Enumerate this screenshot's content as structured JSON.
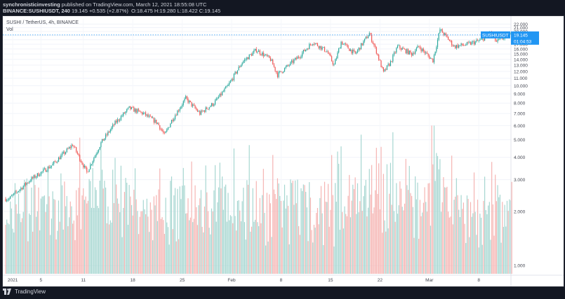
{
  "header": {
    "author": "synchronisticinvesting",
    "published": "published on TradingView.com, March 12, 2021 18:55:08 UTC",
    "symbol_line": {
      "symbol": "BINANCE:SUSHIUSDT, 240",
      "close": "19.145",
      "change": "+0.535 (+2.87%)",
      "o": "O:18.475",
      "h": "H:19.280",
      "l": "L:18.422",
      "c": "C:19.145"
    }
  },
  "legend": {
    "title": "SUSHI / TetherUS, 4h, BINANCE",
    "vol_label": "Vol"
  },
  "price_label": {
    "symbol": "SUSHIUSDT",
    "price": "19.145",
    "countdown": "01:04:53"
  },
  "footer": {
    "brand": "TradingView"
  },
  "colors": {
    "up": "#26a69a",
    "down": "#ef5350",
    "vol_up": "#a5d6d0",
    "vol_down": "#f5b3b1",
    "price_line": "#2196f3"
  },
  "chart_data": {
    "type": "candlestick",
    "series_name": "SUSHIUSDT",
    "interval": "4h",
    "x_tick_labels": [
      "2021",
      "5",
      "11",
      "18",
      "25",
      "Feb",
      "8",
      "15",
      "22",
      "Mar",
      "8"
    ],
    "y_tick_labels": [
      "1.000",
      "2.000",
      "3.000",
      "4.000",
      "5.000",
      "6.000",
      "7.000",
      "8.000",
      "9.000",
      "10.000",
      "11.000",
      "12.000",
      "13.000",
      "14.000",
      "15.000",
      "16.000",
      "17.000",
      "18.000",
      "19.000",
      "20.000",
      "21.000",
      "22.000"
    ],
    "y_scale": "log",
    "ylim": [
      0.9,
      23.5
    ],
    "last_price": 19.145,
    "trend_keypoints": [
      {
        "date": "2020-12-31",
        "close": 2.35
      },
      {
        "date": "2021-01-03",
        "close": 3.0
      },
      {
        "date": "2021-01-06",
        "close": 3.6
      },
      {
        "date": "2021-01-09",
        "close": 4.7
      },
      {
        "date": "2021-01-11",
        "close": 3.3
      },
      {
        "date": "2021-01-13",
        "close": 4.8
      },
      {
        "date": "2021-01-15",
        "close": 6.2
      },
      {
        "date": "2021-01-17",
        "close": 7.5
      },
      {
        "date": "2021-01-19",
        "close": 7.0
      },
      {
        "date": "2021-01-21",
        "close": 6.2
      },
      {
        "date": "2021-01-22",
        "close": 5.3
      },
      {
        "date": "2021-01-23",
        "close": 6.4
      },
      {
        "date": "2021-01-25",
        "close": 8.5
      },
      {
        "date": "2021-01-27",
        "close": 7.0
      },
      {
        "date": "2021-01-29",
        "close": 8.0
      },
      {
        "date": "2021-01-31",
        "close": 10.0
      },
      {
        "date": "2021-02-02",
        "close": 13.5
      },
      {
        "date": "2021-02-04",
        "close": 15.8
      },
      {
        "date": "2021-02-06",
        "close": 14.0
      },
      {
        "date": "2021-02-07",
        "close": 11.5
      },
      {
        "date": "2021-02-10",
        "close": 14.5
      },
      {
        "date": "2021-02-12",
        "close": 17.5
      },
      {
        "date": "2021-02-14",
        "close": 15.5
      },
      {
        "date": "2021-02-15",
        "close": 13.0
      },
      {
        "date": "2021-02-16",
        "close": 17.5
      },
      {
        "date": "2021-02-18",
        "close": 15.0
      },
      {
        "date": "2021-02-20",
        "close": 19.5
      },
      {
        "date": "2021-02-21",
        "close": 15.5
      },
      {
        "date": "2021-02-22",
        "close": 11.8
      },
      {
        "date": "2021-02-23",
        "close": 13.5
      },
      {
        "date": "2021-02-24",
        "close": 16.5
      },
      {
        "date": "2021-02-26",
        "close": 15.0
      },
      {
        "date": "2021-02-27",
        "close": 16.5
      },
      {
        "date": "2021-03-01",
        "close": 13.8
      },
      {
        "date": "2021-03-02",
        "close": 20.5
      },
      {
        "date": "2021-03-03",
        "close": 18.5
      },
      {
        "date": "2021-03-04",
        "close": 16.5
      },
      {
        "date": "2021-03-06",
        "close": 17.0
      },
      {
        "date": "2021-03-08",
        "close": 18.0
      },
      {
        "date": "2021-03-09",
        "close": 20.0
      },
      {
        "date": "2021-03-10",
        "close": 17.5
      },
      {
        "date": "2021-03-11",
        "close": 18.5
      },
      {
        "date": "2021-03-12",
        "close": 19.145
      }
    ],
    "volume": {
      "name": "Vol",
      "approx_peak_date": "2021-03-01"
    }
  }
}
